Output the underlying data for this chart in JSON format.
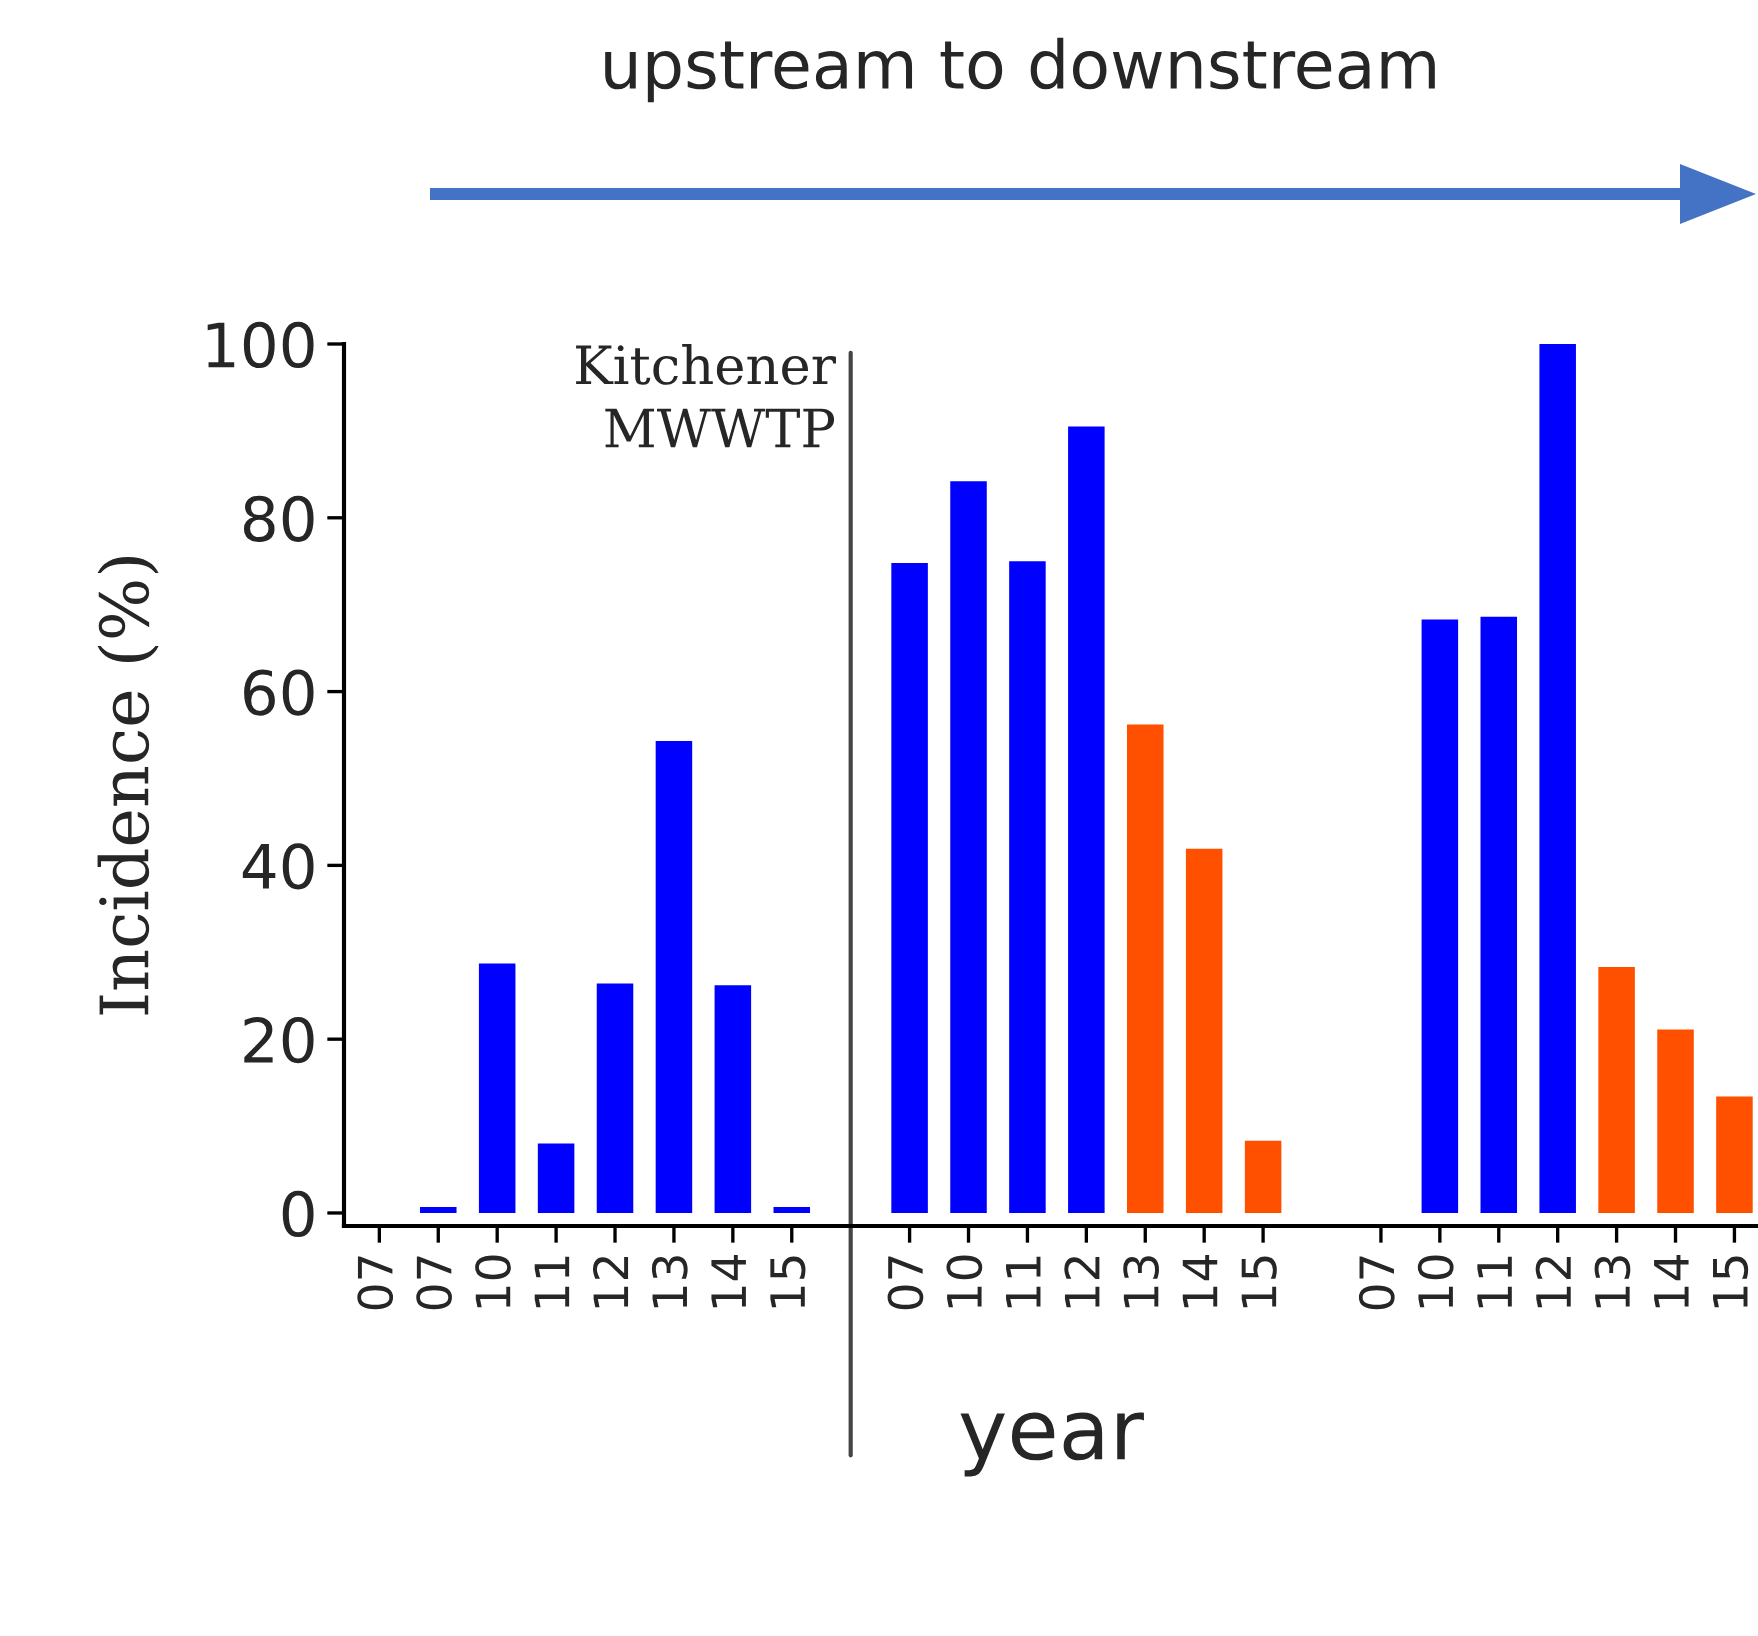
{
  "chart_data": {
    "type": "bar",
    "ylabel": "Incidence (%)",
    "xlabel": "year",
    "annotations": [
      "Kitchener\nMWWTP",
      "upstream to downstream"
    ],
    "categories": [
      "07",
      "07",
      "10",
      "11",
      "12",
      "13",
      "14",
      "15",
      null,
      "07",
      "10",
      "11",
      "12",
      "13",
      "14",
      "15",
      null,
      "07",
      "10",
      "11",
      "12",
      "13",
      "14",
      "15"
    ],
    "values": [
      0,
      0.7,
      28.7,
      8,
      26.4,
      54.3,
      26.2,
      0.7,
      null,
      74.8,
      84.2,
      75,
      90.5,
      56.2,
      41.9,
      8.3,
      null,
      0,
      68.3,
      68.6,
      100,
      28.3,
      21.1,
      13.4
    ],
    "colors": [
      "#0000ff",
      "#0000ff",
      "#0000ff",
      "#0000ff",
      "#0000ff",
      "#0000ff",
      "#0000ff",
      "#0000ff",
      "#0000ff",
      "#0000ff",
      "#0000ff",
      "#0000ff",
      "#0000ff",
      "#ff5000",
      "#ff5000",
      "#ff5000",
      "#0000ff",
      "#0000ff",
      "#0000ff",
      "#0000ff",
      "#0000ff",
      "#ff5000",
      "#ff5000",
      "#ff5000"
    ],
    "ylim": [
      -1.5,
      100
    ],
    "yticks": [
      0,
      20,
      40,
      60,
      80,
      100
    ]
  }
}
